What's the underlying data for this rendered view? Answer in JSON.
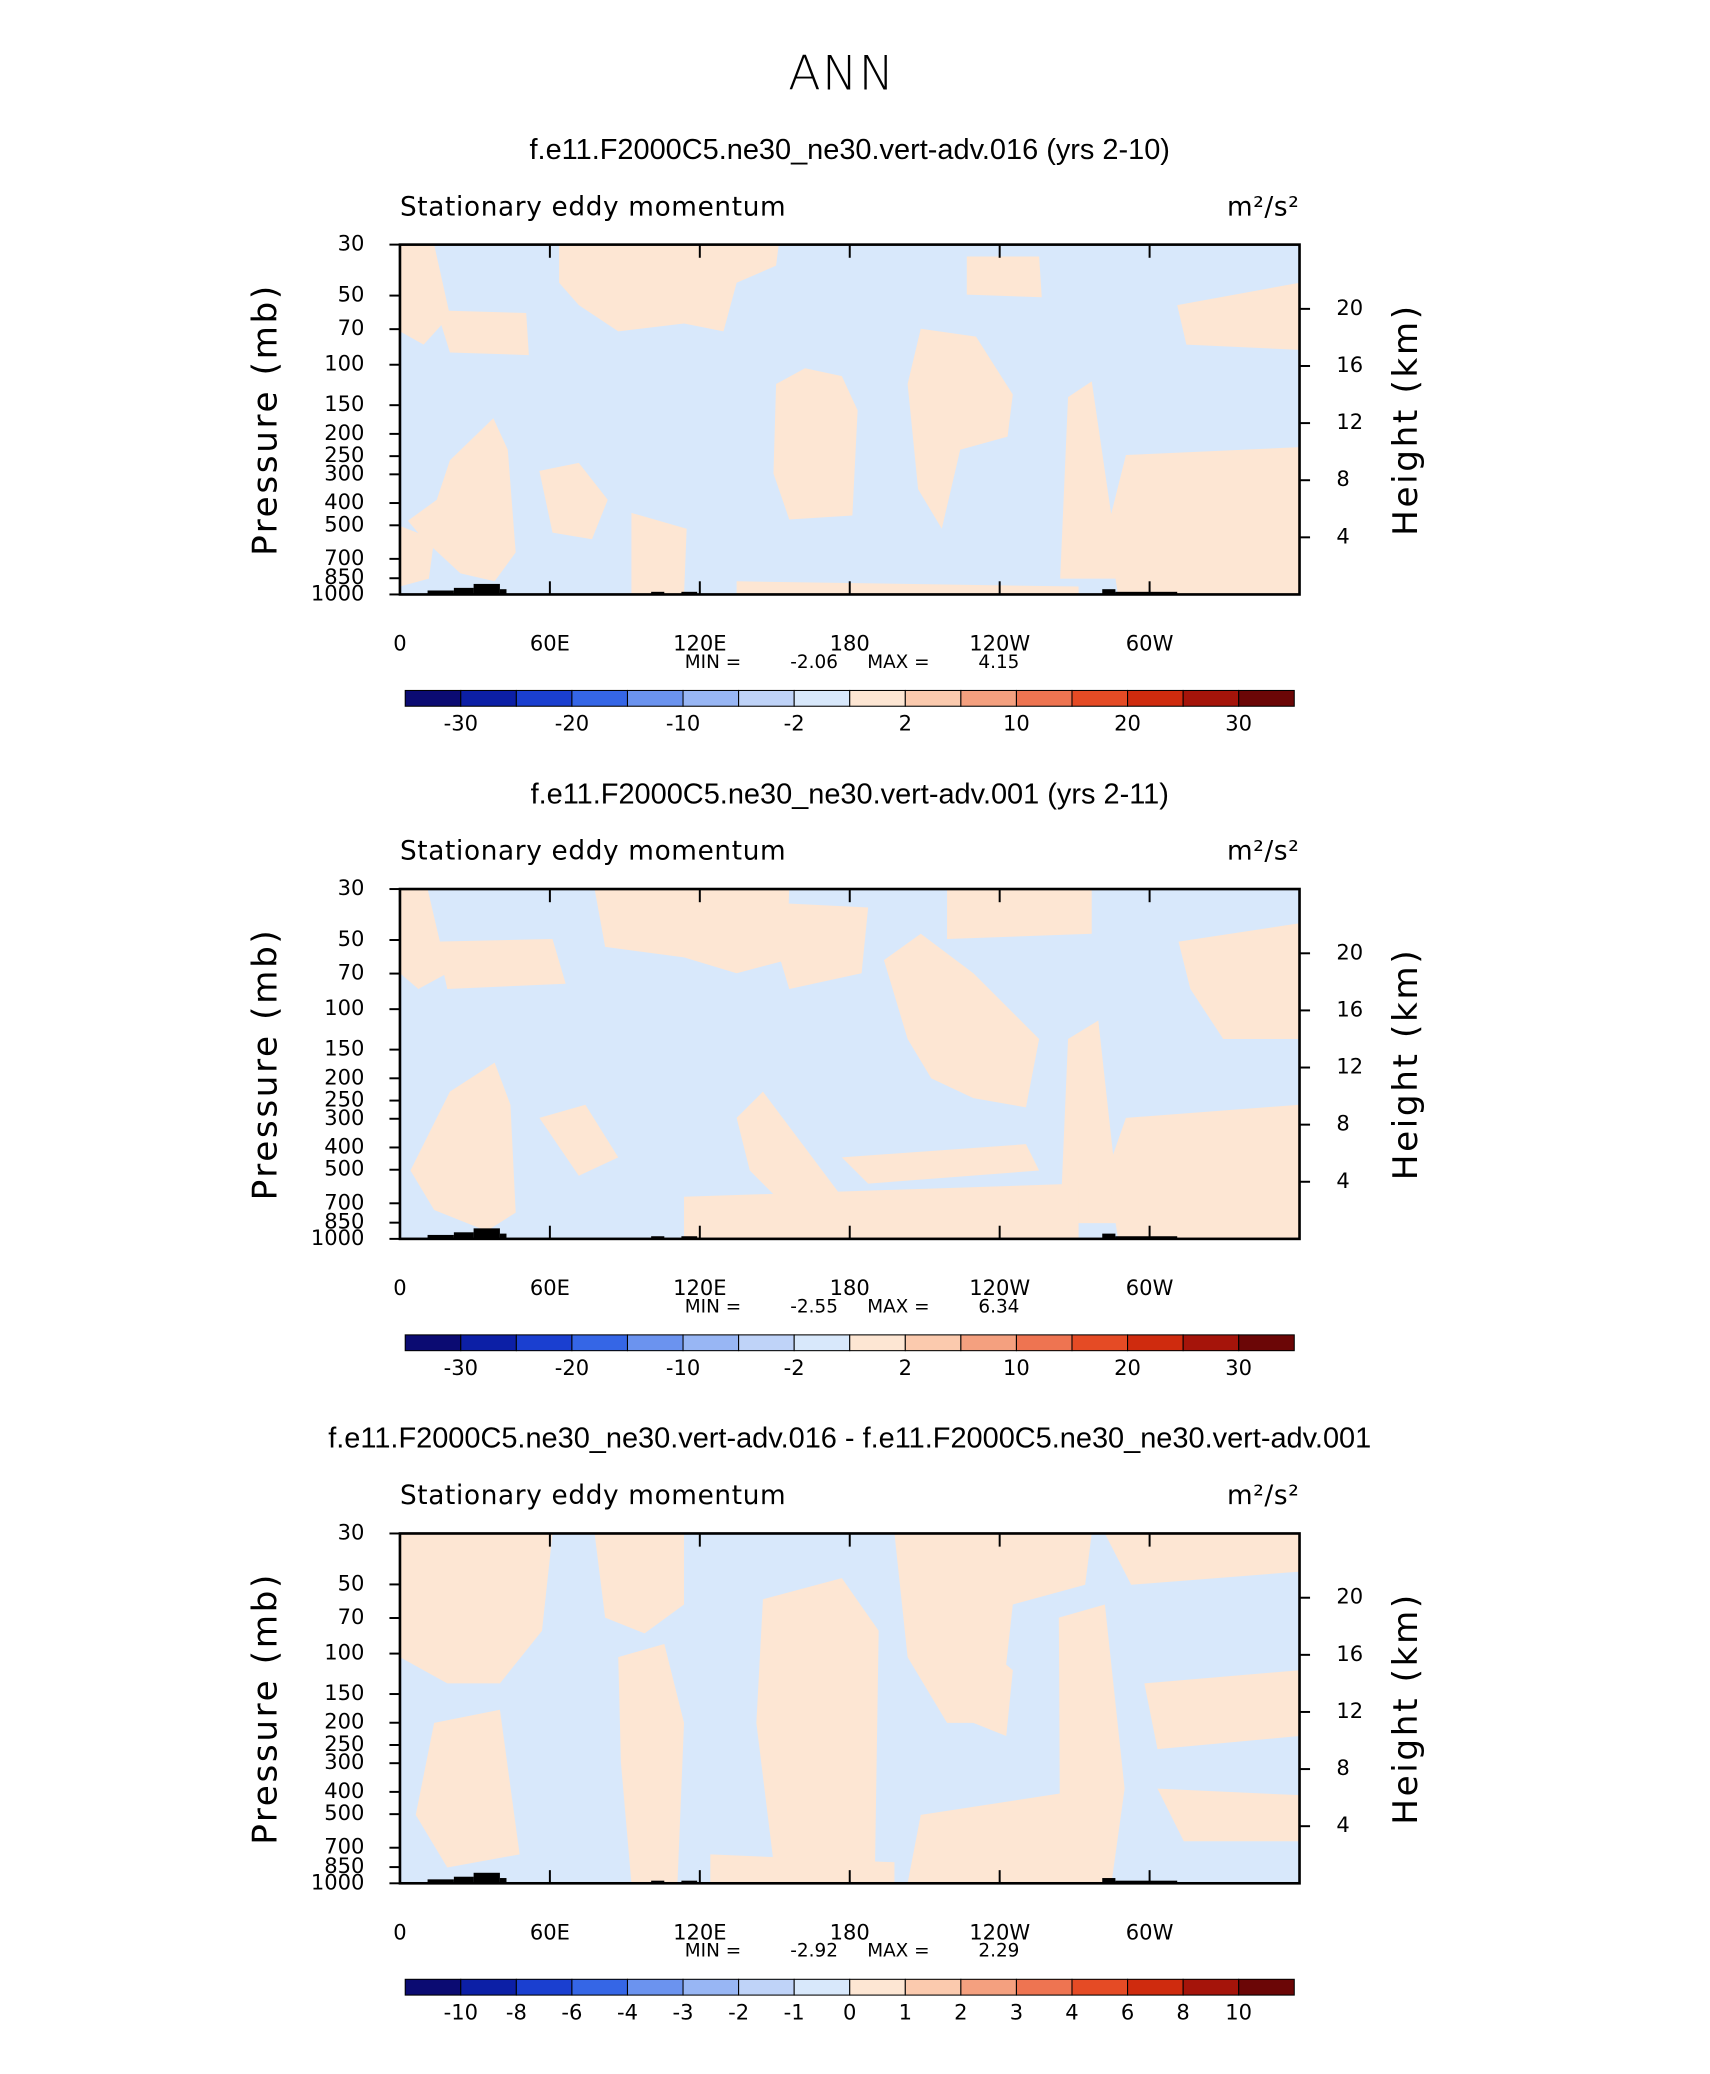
{
  "title": "ANN",
  "chart_data": [
    {
      "type": "contour",
      "title": "f.e11.F2000C5.ne30_ne30.vert-adv.016 (yrs 2-10)",
      "subtitle": "Stationary eddy momentum",
      "units": "m²/s²",
      "ylabel": "Pressure (mb)",
      "y2label": "Height (km)",
      "yscale": "log",
      "ylim": [
        1000,
        30
      ],
      "yticks": [
        30,
        50,
        70,
        100,
        150,
        200,
        250,
        300,
        400,
        500,
        700,
        850,
        1000
      ],
      "y2lim": [
        0,
        24.5
      ],
      "y2ticks": [
        4,
        8,
        12,
        16,
        20
      ],
      "xlim": [
        0,
        360
      ],
      "xticks": [
        0,
        {
          "value": 60,
          "label": "60E"
        },
        {
          "value": 120,
          "label": "120E"
        },
        180,
        {
          "value": 240,
          "label": "120W"
        },
        {
          "value": 300,
          "label": "60W"
        }
      ],
      "min_label": "MIN =",
      "min": -2.06,
      "max_label": "MAX =",
      "max": 4.15,
      "colorbar": {
        "levels": [
          -30,
          -20,
          -10,
          -2,
          2,
          10,
          20,
          30
        ],
        "colors": [
          "#0b0b72",
          "#0c1fa6",
          "#1a3fd0",
          "#3566e6",
          "#6b93ef",
          "#98b6f4",
          "#bfd3f8",
          "#d8e8fb",
          "#fde6d3",
          "#fbcaae",
          "#f4a07f",
          "#ee7451",
          "#e54b25",
          "#cf2b0e",
          "#a5140a",
          "#6b0606"
        ]
      }
    },
    {
      "type": "contour",
      "title": "f.e11.F2000C5.ne30_ne30.vert-adv.001 (yrs 2-11)",
      "subtitle": "Stationary eddy momentum",
      "units": "m²/s²",
      "ylabel": "Pressure (mb)",
      "y2label": "Height (km)",
      "yscale": "log",
      "ylim": [
        1000,
        30
      ],
      "yticks": [
        30,
        50,
        70,
        100,
        150,
        200,
        250,
        300,
        400,
        500,
        700,
        850,
        1000
      ],
      "y2lim": [
        0,
        24.5
      ],
      "y2ticks": [
        4,
        8,
        12,
        16,
        20
      ],
      "xlim": [
        0,
        360
      ],
      "xticks": [
        0,
        {
          "value": 60,
          "label": "60E"
        },
        {
          "value": 120,
          "label": "120E"
        },
        180,
        {
          "value": 240,
          "label": "120W"
        },
        {
          "value": 300,
          "label": "60W"
        }
      ],
      "min_label": "MIN =",
      "min": -2.55,
      "max_label": "MAX =",
      "max": 6.34,
      "colorbar": {
        "levels": [
          -30,
          -20,
          -10,
          -2,
          2,
          10,
          20,
          30
        ],
        "colors": [
          "#0b0b72",
          "#0c1fa6",
          "#1a3fd0",
          "#3566e6",
          "#6b93ef",
          "#98b6f4",
          "#bfd3f8",
          "#d8e8fb",
          "#fde6d3",
          "#fbcaae",
          "#f4a07f",
          "#ee7451",
          "#e54b25",
          "#cf2b0e",
          "#a5140a",
          "#6b0606"
        ]
      }
    },
    {
      "type": "contour",
      "title": "f.e11.F2000C5.ne30_ne30.vert-adv.016 - f.e11.F2000C5.ne30_ne30.vert-adv.001",
      "subtitle": "Stationary eddy momentum",
      "units": "m²/s²",
      "ylabel": "Pressure (mb)",
      "y2label": "Height (km)",
      "yscale": "log",
      "ylim": [
        1000,
        30
      ],
      "yticks": [
        30,
        50,
        70,
        100,
        150,
        200,
        250,
        300,
        400,
        500,
        700,
        850,
        1000
      ],
      "y2lim": [
        0,
        24.5
      ],
      "y2ticks": [
        4,
        8,
        12,
        16,
        20
      ],
      "xlim": [
        0,
        360
      ],
      "xticks": [
        0,
        {
          "value": 60,
          "label": "60E"
        },
        {
          "value": 120,
          "label": "120E"
        },
        180,
        {
          "value": 240,
          "label": "120W"
        },
        {
          "value": 300,
          "label": "60W"
        }
      ],
      "min_label": "MIN =",
      "min": -2.92,
      "max_label": "MAX =",
      "max": 2.29,
      "colorbar": {
        "levels": [
          -10,
          -8,
          -6,
          -4,
          -3,
          -2,
          -1,
          0,
          1,
          2,
          3,
          4,
          6,
          8,
          10
        ],
        "colors": [
          "#0b0b72",
          "#0c1fa6",
          "#1a3fd0",
          "#3566e6",
          "#6b93ef",
          "#98b6f4",
          "#bfd3f8",
          "#d8e8fb",
          "#fde6d3",
          "#fbcaae",
          "#f4a07f",
          "#ee7451",
          "#e54b25",
          "#cf2b0e",
          "#a5140a",
          "#6b0606"
        ]
      }
    }
  ]
}
